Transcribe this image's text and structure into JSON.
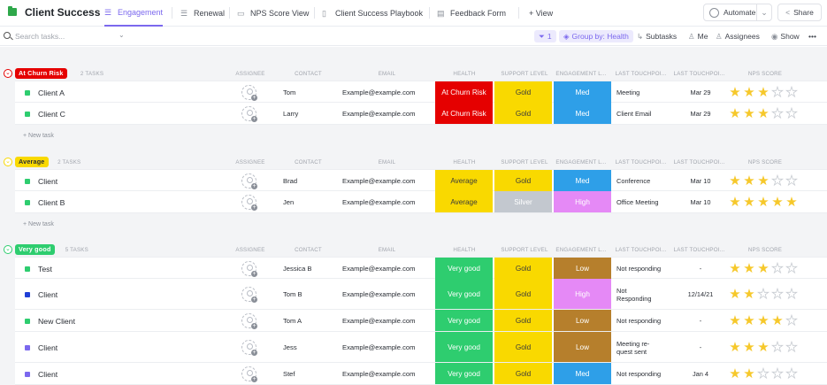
{
  "app": {
    "title": "Client Success"
  },
  "tabs": [
    {
      "label": "Engagement",
      "icon": "list-icon",
      "active": true
    },
    {
      "label": "Renewal",
      "icon": "list-icon"
    },
    {
      "label": "NPS Score View",
      "icon": "doc-icon"
    },
    {
      "label": "Client Success Playbook",
      "icon": "doc-icon"
    },
    {
      "label": "Feedback Form",
      "icon": "form-icon"
    },
    {
      "label": "+ View",
      "icon": ""
    }
  ],
  "header_buttons": {
    "automate": "Automate",
    "share": "Share"
  },
  "toolbar": {
    "search_placeholder": "Search tasks...",
    "filter_count": "1",
    "group_by": "Group by: Health",
    "subtasks": "Subtasks",
    "me": "Me",
    "assignees": "Assignees",
    "show": "Show",
    "more": "•••"
  },
  "columns": {
    "assignee": "ASSIGNEE",
    "contact": "CONTACT",
    "email": "EMAIL",
    "health": "HEALTH",
    "support_level": "SUPPORT LEVEL",
    "engagement": "ENGAGEMENT L...",
    "last_touchpoint_type": "LAST TOUCHPOI...",
    "last_touchpoint_date": "LAST TOUCHPOI...",
    "nps": "NPS SCORE"
  },
  "new_task_label": "+ New task",
  "colors": {
    "accent": "#7b68ee",
    "churn": "#e50000",
    "average": "#f9d900",
    "very_good": "#2ecd6f",
    "gold": "#f9d900",
    "silver": "#c3c8cf",
    "med": "#2e9fe8",
    "high": "#e589f6",
    "low": "#b67f2c"
  },
  "groups": [
    {
      "name": "At Churn Risk",
      "count": "2 TASKS",
      "color": "#e50000",
      "pill_text": "#ffffff",
      "tasks": [
        {
          "name": "Client A",
          "square": "#2ecd6f",
          "contact": "Tom",
          "email": "Example@example.com",
          "health": "At Churn Risk",
          "health_color": "#e50000",
          "support": "Gold",
          "support_color": "#f9d900",
          "engagement": "Med",
          "engagement_color": "#2e9fe8",
          "touch": "Meeting",
          "date": "Mar 29",
          "nps": 3
        },
        {
          "name": "Client C",
          "square": "#2ecd6f",
          "contact": "Larry",
          "email": "Example@example.com",
          "health": "At Churn Risk",
          "health_color": "#e50000",
          "support": "Gold",
          "support_color": "#f9d900",
          "engagement": "Med",
          "engagement_color": "#2e9fe8",
          "touch": "Client Email",
          "date": "Mar 29",
          "nps": 3
        }
      ]
    },
    {
      "name": "Average",
      "count": "2 TASKS",
      "color": "#f9d900",
      "pill_text": "#292d34",
      "tasks": [
        {
          "name": "Client",
          "square": "#2ecd6f",
          "contact": "Brad",
          "email": "Example@example.com",
          "health": "Average",
          "health_color": "#f9d900",
          "support": "Gold",
          "support_color": "#f9d900",
          "engagement": "Med",
          "engagement_color": "#2e9fe8",
          "touch": "Conference",
          "date": "Mar 10",
          "nps": 3
        },
        {
          "name": "Client B",
          "square": "#2ecd6f",
          "contact": "Jen",
          "email": "Example@example.com",
          "health": "Average",
          "health_color": "#f9d900",
          "support": "Silver",
          "support_color": "#c3c8cf",
          "engagement": "High",
          "engagement_color": "#e589f6",
          "touch": "Office Meeting",
          "date": "Mar 10",
          "nps": 5
        }
      ]
    },
    {
      "name": "Very good",
      "count": "5 TASKS",
      "color": "#2ecd6f",
      "pill_text": "#ffffff",
      "tasks": [
        {
          "name": "Test",
          "square": "#2ecd6f",
          "contact": "Jessica B",
          "email": "Example@example.com",
          "health": "Very good",
          "health_color": "#2ecd6f",
          "support": "Gold",
          "support_color": "#f9d900",
          "engagement": "Low",
          "engagement_color": "#b67f2c",
          "touch": "Not responding",
          "date": "-",
          "nps": 3
        },
        {
          "name": "Client",
          "square": "#1f3fd6",
          "contact": "Tom B",
          "email": "Example@example.com",
          "health": "Very good",
          "health_color": "#2ecd6f",
          "support": "Gold",
          "support_color": "#f9d900",
          "engagement": "High",
          "engagement_color": "#e589f6",
          "touch": "Not\nResponding",
          "date": "12/14/21",
          "nps": 2
        },
        {
          "name": "New Client",
          "square": "#2ecd6f",
          "contact": "Tom A",
          "email": "Example@example.com",
          "health": "Very good",
          "health_color": "#2ecd6f",
          "support": "Gold",
          "support_color": "#f9d900",
          "engagement": "Low",
          "engagement_color": "#b67f2c",
          "touch": "Not responding",
          "date": "-",
          "nps": 4
        },
        {
          "name": "Client",
          "square": "#7b68ee",
          "contact": "Jess",
          "email": "Example@example.com",
          "health": "Very good",
          "health_color": "#2ecd6f",
          "support": "Gold",
          "support_color": "#f9d900",
          "engagement": "Low",
          "engagement_color": "#b67f2c",
          "touch": "Meeting re-\nquest sent",
          "date": "-",
          "nps": 3
        },
        {
          "name": "Client",
          "square": "#7b68ee",
          "contact": "Stef",
          "email": "Example@example.com",
          "health": "Very good",
          "health_color": "#2ecd6f",
          "support": "Gold",
          "support_color": "#f9d900",
          "engagement": "Med",
          "engagement_color": "#2e9fe8",
          "touch": "Not responding",
          "date": "Jan 4",
          "nps": 2
        }
      ]
    }
  ]
}
